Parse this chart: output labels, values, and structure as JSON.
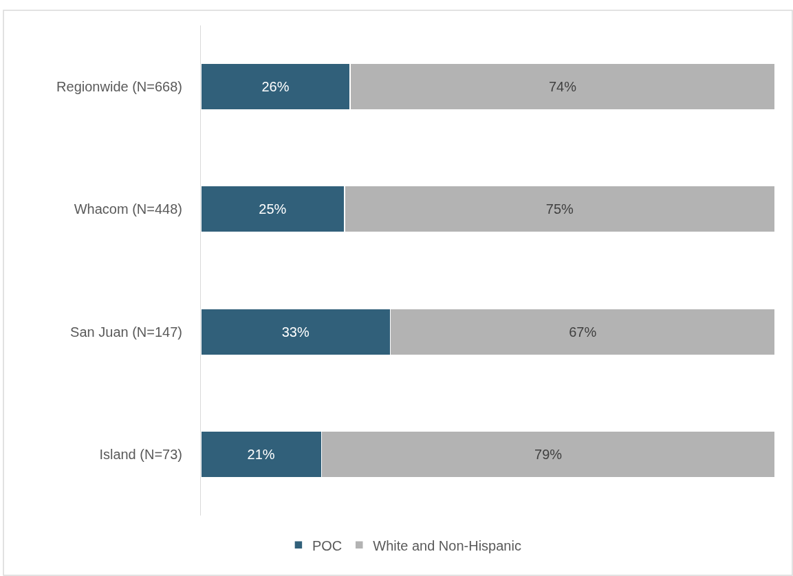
{
  "chart_data": {
    "type": "bar",
    "orientation": "horizontal",
    "stacked": true,
    "categories": [
      "Regionwide (N=668)",
      "Whacom (N=448)",
      "San Juan (N=147)",
      "Island (N=73)"
    ],
    "series": [
      {
        "name": "POC",
        "color": "#31607a",
        "values": [
          26,
          25,
          33,
          21
        ],
        "value_labels": [
          "26%",
          "25%",
          "33%",
          "21%"
        ]
      },
      {
        "name": "White and Non-Hispanic",
        "color": "#b3b3b3",
        "values": [
          74,
          75,
          67,
          79
        ],
        "value_labels": [
          "74%",
          "75%",
          "67%",
          "79%"
        ]
      }
    ],
    "xlim": [
      0,
      100
    ],
    "tick_labels": "y",
    "legend": "bottom"
  }
}
